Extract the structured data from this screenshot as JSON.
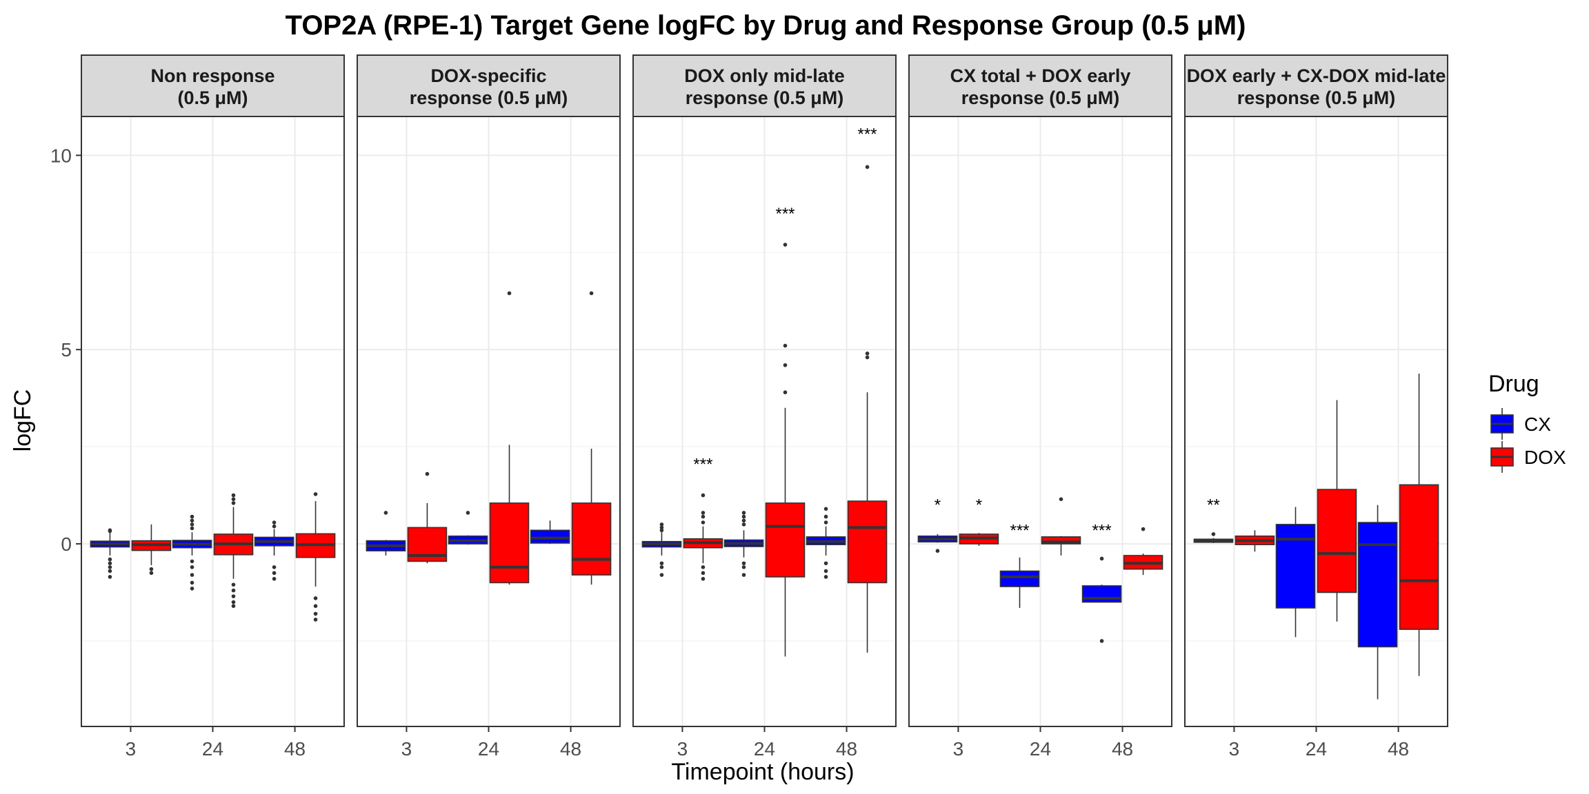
{
  "chart_data": {
    "type": "box",
    "title": "TOP2A (RPE-1) Target Gene logFC by Drug and Response Group (0.5 μM)",
    "xlabel": "Timepoint (hours)",
    "ylabel": "logFC",
    "ylim": [
      -4.7,
      11.0
    ],
    "y_ticks": [
      0,
      5,
      10
    ],
    "x_categories": [
      "3",
      "24",
      "48"
    ],
    "legend": {
      "title": "Drug",
      "placement": "right",
      "entries": [
        {
          "name": "CX",
          "color": "#0000ff"
        },
        {
          "name": "DOX",
          "color": "#ff0000"
        }
      ]
    },
    "panels": [
      {
        "label": [
          "Non response",
          "(0.5 μM)"
        ],
        "boxes": [
          {
            "x": "3",
            "drug": "CX",
            "low": -0.3,
            "q1": -0.08,
            "median": 0.0,
            "q3": 0.07,
            "high": 0.3,
            "outliers": [
              -0.4,
              -0.5,
              -0.6,
              -0.7,
              -0.85,
              0.33,
              0.35
            ]
          },
          {
            "x": "3",
            "drug": "DOX",
            "low": -0.55,
            "q1": -0.17,
            "median": -0.02,
            "q3": 0.08,
            "high": 0.5,
            "outliers": [
              -0.65,
              -0.75
            ]
          },
          {
            "x": "24",
            "drug": "CX",
            "low": -0.3,
            "q1": -0.1,
            "median": -0.01,
            "q3": 0.09,
            "high": 0.3,
            "outliers": [
              -0.45,
              -0.6,
              -0.8,
              -1.0,
              -1.15,
              0.4,
              0.5,
              0.6,
              0.7
            ]
          },
          {
            "x": "24",
            "drug": "DOX",
            "low": -0.9,
            "q1": -0.28,
            "median": 0.0,
            "q3": 0.25,
            "high": 0.95,
            "outliers": [
              -1.05,
              -1.2,
              -1.35,
              -1.5,
              -1.6,
              1.05,
              1.15,
              1.25
            ]
          },
          {
            "x": "48",
            "drug": "CX",
            "low": -0.3,
            "q1": -0.05,
            "median": 0.06,
            "q3": 0.17,
            "high": 0.38,
            "outliers": [
              -0.6,
              -0.75,
              -0.9,
              0.45,
              0.55
            ]
          },
          {
            "x": "48",
            "drug": "DOX",
            "low": -1.1,
            "q1": -0.35,
            "median": -0.02,
            "q3": 0.26,
            "high": 1.1,
            "outliers": [
              -1.4,
              -1.6,
              -1.8,
              -1.95,
              1.28
            ]
          }
        ],
        "significance": []
      },
      {
        "label": [
          "DOX-specific",
          "response (0.5 μM)"
        ],
        "boxes": [
          {
            "x": "3",
            "drug": "CX",
            "low": -0.3,
            "q1": -0.18,
            "median": -0.05,
            "q3": 0.08,
            "high": 0.1,
            "outliers": [
              0.8
            ]
          },
          {
            "x": "3",
            "drug": "DOX",
            "low": -0.5,
            "q1": -0.45,
            "median": -0.3,
            "q3": 0.42,
            "high": 1.05,
            "outliers": [
              1.8
            ]
          },
          {
            "x": "24",
            "drug": "CX",
            "low": -0.02,
            "q1": 0.0,
            "median": 0.08,
            "q3": 0.2,
            "high": 0.22,
            "outliers": [
              0.8
            ]
          },
          {
            "x": "24",
            "drug": "DOX",
            "low": -1.05,
            "q1": -1.0,
            "median": -0.6,
            "q3": 1.05,
            "high": 2.55,
            "outliers": [
              6.45
            ]
          },
          {
            "x": "48",
            "drug": "CX",
            "low": 0.0,
            "q1": 0.02,
            "median": 0.15,
            "q3": 0.35,
            "high": 0.6,
            "outliers": []
          },
          {
            "x": "48",
            "drug": "DOX",
            "low": -1.05,
            "q1": -0.8,
            "median": -0.4,
            "q3": 1.05,
            "high": 2.45,
            "outliers": [
              6.45
            ]
          }
        ],
        "significance": []
      },
      {
        "label": [
          "DOX only mid-late",
          "response (0.5 μM)"
        ],
        "boxes": [
          {
            "x": "3",
            "drug": "CX",
            "low": -0.3,
            "q1": -0.08,
            "median": 0.0,
            "q3": 0.06,
            "high": 0.3,
            "outliers": [
              -0.5,
              -0.6,
              -0.8,
              0.35,
              0.42,
              0.5
            ]
          },
          {
            "x": "3",
            "drug": "DOX",
            "low": -0.5,
            "q1": -0.1,
            "median": 0.03,
            "q3": 0.13,
            "high": 0.45,
            "outliers": [
              -0.6,
              -0.75,
              -0.9,
              0.55,
              0.7,
              0.8,
              1.25
            ]
          },
          {
            "x": "24",
            "drug": "CX",
            "low": -0.35,
            "q1": -0.07,
            "median": 0.01,
            "q3": 0.1,
            "high": 0.35,
            "outliers": [
              -0.5,
              -0.6,
              -0.8,
              0.5,
              0.6,
              0.7,
              0.8
            ]
          },
          {
            "x": "24",
            "drug": "DOX",
            "low": -2.9,
            "q1": -0.85,
            "median": 0.45,
            "q3": 1.05,
            "high": 3.5,
            "outliers": [
              3.9,
              4.6,
              5.1,
              7.7
            ]
          },
          {
            "x": "48",
            "drug": "CX",
            "low": -0.3,
            "q1": -0.02,
            "median": 0.06,
            "q3": 0.18,
            "high": 0.45,
            "outliers": [
              -0.5,
              -0.7,
              -0.85,
              0.55,
              0.7,
              0.9
            ]
          },
          {
            "x": "48",
            "drug": "DOX",
            "low": -2.8,
            "q1": -1.0,
            "median": 0.42,
            "q3": 1.1,
            "high": 3.9,
            "outliers": [
              4.8,
              4.9,
              9.7
            ]
          }
        ],
        "significance": [
          {
            "x": "3",
            "drug": "DOX",
            "label": "***",
            "y": 2.05
          },
          {
            "x": "24",
            "drug": "DOX",
            "label": "***",
            "y": 8.5
          },
          {
            "x": "48",
            "drug": "DOX",
            "label": "***",
            "y": 10.55
          }
        ]
      },
      {
        "label": [
          "CX total + DOX early",
          "response (0.5 μM)"
        ],
        "boxes": [
          {
            "x": "3",
            "drug": "CX",
            "low": 0.03,
            "q1": 0.05,
            "median": 0.12,
            "q3": 0.2,
            "high": 0.25,
            "outliers": [
              -0.18
            ]
          },
          {
            "x": "3",
            "drug": "DOX",
            "low": -0.05,
            "q1": 0.0,
            "median": 0.15,
            "q3": 0.25,
            "high": 0.28,
            "outliers": []
          },
          {
            "x": "24",
            "drug": "CX",
            "low": -1.65,
            "q1": -1.1,
            "median": -0.85,
            "q3": -0.7,
            "high": -0.35,
            "outliers": []
          },
          {
            "x": "24",
            "drug": "DOX",
            "low": -0.3,
            "q1": 0.0,
            "median": 0.05,
            "q3": 0.18,
            "high": 0.2,
            "outliers": [
              1.15
            ]
          },
          {
            "x": "48",
            "drug": "CX",
            "low": -1.5,
            "q1": -1.5,
            "median": -1.4,
            "q3": -1.08,
            "high": -1.05,
            "outliers": [
              -0.38,
              -2.5
            ]
          },
          {
            "x": "48",
            "drug": "DOX",
            "low": -0.8,
            "q1": -0.65,
            "median": -0.5,
            "q3": -0.3,
            "high": -0.25,
            "outliers": [
              0.38
            ]
          }
        ],
        "significance": [
          {
            "x": "3",
            "drug": "CX",
            "label": "*",
            "y": 1.0
          },
          {
            "x": "3",
            "drug": "DOX",
            "label": "*",
            "y": 1.0
          },
          {
            "x": "24",
            "drug": "CX",
            "label": "***",
            "y": 0.35
          },
          {
            "x": "48",
            "drug": "CX",
            "label": "***",
            "y": 0.35
          }
        ]
      },
      {
        "label": [
          "DOX early + CX-DOX mid-late",
          "response (0.5 μM)"
        ],
        "boxes": [
          {
            "x": "3",
            "drug": "CX",
            "low": 0.02,
            "q1": 0.04,
            "median": 0.08,
            "q3": 0.12,
            "high": 0.15,
            "outliers": [
              0.25
            ]
          },
          {
            "x": "3",
            "drug": "DOX",
            "low": -0.2,
            "q1": -0.02,
            "median": 0.08,
            "q3": 0.2,
            "high": 0.35,
            "outliers": []
          },
          {
            "x": "24",
            "drug": "CX",
            "low": -2.4,
            "q1": -1.65,
            "median": 0.12,
            "q3": 0.5,
            "high": 0.95,
            "outliers": []
          },
          {
            "x": "24",
            "drug": "DOX",
            "low": -2.0,
            "q1": -1.25,
            "median": -0.25,
            "q3": 1.4,
            "high": 3.7,
            "outliers": []
          },
          {
            "x": "48",
            "drug": "CX",
            "low": -4.0,
            "q1": -2.65,
            "median": -0.02,
            "q3": 0.55,
            "high": 1.0,
            "outliers": []
          },
          {
            "x": "48",
            "drug": "DOX",
            "low": -3.4,
            "q1": -2.2,
            "median": -0.95,
            "q3": 1.52,
            "high": 4.38,
            "outliers": []
          }
        ],
        "significance": [
          {
            "x": "3",
            "drug": "CX",
            "label": "**",
            "y": 1.0
          }
        ]
      }
    ]
  }
}
